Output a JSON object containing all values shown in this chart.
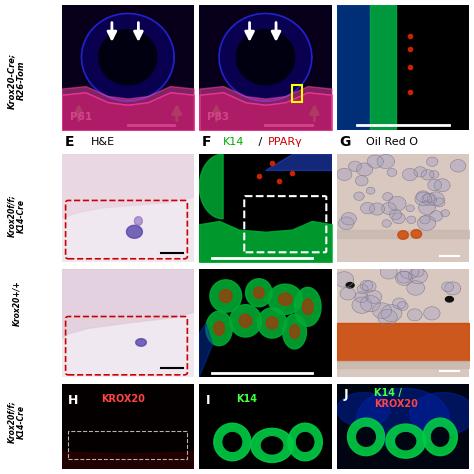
{
  "figure_width": 4.74,
  "figure_height": 4.74,
  "dpi": 100,
  "background_color": "#ffffff",
  "top_row": {
    "y_label": "Krox20-Cre;\nR26-Tom",
    "panels": [
      {
        "label": "",
        "sublabel": "P61",
        "bg": "#000000"
      },
      {
        "label": "",
        "sublabel": "P83",
        "bg": "#000000"
      },
      {
        "label": "",
        "sublabel": "",
        "bg": "#000000"
      }
    ]
  },
  "mid_section_label_E": "E",
  "mid_section_title_E": "H&E",
  "mid_section_label_F": "F",
  "mid_section_title_F_green": "K14",
  "mid_section_title_F_slash": " / ",
  "mid_section_title_F_red": "PPARγ",
  "mid_section_label_G": "G",
  "mid_section_title_G": "Oil Red O",
  "left_row_label_top": "Krox20f/f;\nK14-Cre",
  "left_row_label_bot": "Krox20+/+",
  "bottom_row": {
    "y_label": "Krox20f/f;\nK14-Cre",
    "panels": [
      {
        "label": "H",
        "sublabel": "KROX20",
        "sublabel_color": "#ff4444",
        "bg": "#000000"
      },
      {
        "label": "I",
        "sublabel": "K14",
        "sublabel_color": "#44ff44",
        "bg": "#000000"
      },
      {
        "label": "J",
        "sublabel": "K14 /\nKROX20",
        "sublabel_color_1": "#44ff44",
        "sublabel_color_2": "#ff4444",
        "bg": "#000000"
      }
    ]
  },
  "colors": {
    "white": "#ffffff",
    "black": "#000000",
    "red": "#cc0000",
    "green": "#00cc00",
    "bold_label": "#000000"
  }
}
